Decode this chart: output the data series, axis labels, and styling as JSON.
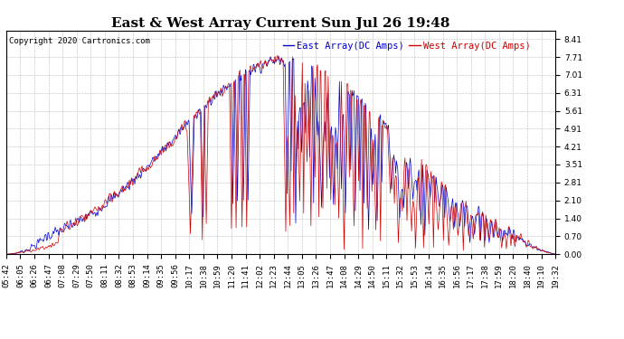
{
  "title": "East & West Array Current Sun Jul 26 19:48",
  "copyright": "Copyright 2020 Cartronics.com",
  "legend_east": "East Array(DC Amps)",
  "legend_west": "West Array(DC Amps)",
  "east_color": "#0000cc",
  "west_color": "#cc0000",
  "background_color": "#ffffff",
  "grid_color": "#bbbbbb",
  "yticks": [
    0.0,
    0.7,
    1.4,
    2.1,
    2.81,
    3.51,
    4.21,
    4.91,
    5.61,
    6.31,
    7.01,
    7.71,
    8.41
  ],
  "ylim": [
    0.0,
    8.75
  ],
  "title_fontsize": 11,
  "tick_fontsize": 6.5,
  "copyright_fontsize": 6.5,
  "legend_fontsize": 7.5,
  "x_labels": [
    "05:42",
    "06:05",
    "06:26",
    "06:47",
    "07:08",
    "07:29",
    "07:50",
    "08:11",
    "08:32",
    "08:53",
    "09:14",
    "09:35",
    "09:56",
    "10:17",
    "10:38",
    "10:59",
    "11:20",
    "11:41",
    "12:02",
    "12:23",
    "12:44",
    "13:05",
    "13:26",
    "13:47",
    "14:08",
    "14:29",
    "14:50",
    "15:11",
    "15:32",
    "15:53",
    "16:14",
    "16:35",
    "16:56",
    "17:17",
    "17:38",
    "17:59",
    "18:20",
    "18:40",
    "19:10",
    "19:32"
  ]
}
